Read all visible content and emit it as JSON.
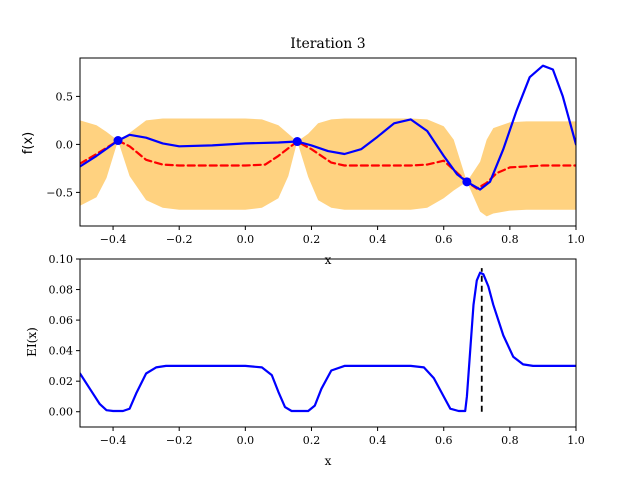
{
  "chart_data": [
    {
      "type": "line",
      "title": "Iteration 3",
      "xlabel": "x",
      "ylabel": "f(x)",
      "xlim": [
        -0.5,
        1.0
      ],
      "ylim": [
        -0.85,
        0.9
      ],
      "xticks": [
        -0.4,
        -0.2,
        0.0,
        0.2,
        0.4,
        0.6,
        0.8,
        1.0
      ],
      "yticks": [
        -0.5,
        0.0,
        0.5
      ],
      "grid": false,
      "series": [
        {
          "kind": "band",
          "color": "#ffd280",
          "x": [
            -0.5,
            -0.45,
            -0.42,
            -0.385,
            -0.35,
            -0.3,
            -0.25,
            -0.2,
            -0.1,
            0.0,
            0.05,
            0.1,
            0.13,
            0.157,
            0.19,
            0.22,
            0.26,
            0.3,
            0.4,
            0.5,
            0.55,
            0.6,
            0.63,
            0.67,
            0.71,
            0.73,
            0.75,
            0.8,
            0.85,
            0.9,
            1.0
          ],
          "upper": [
            0.25,
            0.2,
            0.13,
            0.04,
            0.12,
            0.25,
            0.27,
            0.27,
            0.27,
            0.27,
            0.26,
            0.2,
            0.11,
            0.03,
            0.11,
            0.22,
            0.26,
            0.27,
            0.27,
            0.27,
            0.26,
            0.19,
            0.05,
            -0.39,
            -0.18,
            0.05,
            0.17,
            0.23,
            0.24,
            0.24,
            0.24
          ],
          "lower": [
            -0.64,
            -0.55,
            -0.35,
            0.04,
            -0.33,
            -0.58,
            -0.66,
            -0.68,
            -0.68,
            -0.68,
            -0.66,
            -0.56,
            -0.33,
            0.03,
            -0.34,
            -0.58,
            -0.66,
            -0.68,
            -0.68,
            -0.68,
            -0.66,
            -0.56,
            -0.48,
            -0.39,
            -0.7,
            -0.75,
            -0.72,
            -0.69,
            -0.68,
            -0.68,
            -0.68
          ]
        },
        {
          "kind": "line",
          "color": "#ff0000",
          "dash": true,
          "x": [
            -0.5,
            -0.45,
            -0.385,
            -0.35,
            -0.3,
            -0.25,
            -0.2,
            -0.1,
            0.0,
            0.06,
            0.1,
            0.157,
            0.2,
            0.26,
            0.3,
            0.4,
            0.5,
            0.55,
            0.6,
            0.67,
            0.7,
            0.73,
            0.76,
            0.8,
            0.9,
            1.0
          ],
          "y": [
            -0.2,
            -0.1,
            0.04,
            -0.02,
            -0.16,
            -0.21,
            -0.22,
            -0.22,
            -0.22,
            -0.21,
            -0.12,
            0.03,
            -0.05,
            -0.19,
            -0.22,
            -0.22,
            -0.22,
            -0.21,
            -0.17,
            -0.39,
            -0.46,
            -0.4,
            -0.3,
            -0.24,
            -0.22,
            -0.22
          ]
        },
        {
          "kind": "line",
          "color": "#0000ff",
          "dash": false,
          "x": [
            -0.5,
            -0.45,
            -0.385,
            -0.35,
            -0.3,
            -0.25,
            -0.2,
            -0.1,
            0.0,
            0.1,
            0.157,
            0.2,
            0.25,
            0.3,
            0.35,
            0.4,
            0.45,
            0.5,
            0.55,
            0.6,
            0.64,
            0.67,
            0.71,
            0.74,
            0.78,
            0.82,
            0.86,
            0.9,
            0.93,
            0.96,
            1.0
          ],
          "y": [
            -0.23,
            -0.12,
            0.04,
            0.1,
            0.07,
            0.01,
            -0.02,
            -0.01,
            0.01,
            0.02,
            0.03,
            -0.01,
            -0.07,
            -0.1,
            -0.05,
            0.08,
            0.22,
            0.26,
            0.14,
            -0.12,
            -0.31,
            -0.39,
            -0.47,
            -0.39,
            -0.05,
            0.35,
            0.7,
            0.82,
            0.78,
            0.5,
            0.0
          ]
        },
        {
          "kind": "points",
          "color": "#0000ff",
          "x": [
            -0.385,
            0.157,
            0.67
          ],
          "y": [
            0.04,
            0.03,
            -0.39
          ]
        }
      ]
    },
    {
      "type": "line",
      "title": "",
      "xlabel": "x",
      "ylabel": "EI(x)",
      "xlim": [
        -0.5,
        1.0
      ],
      "ylim": [
        -0.01,
        0.1
      ],
      "xticks": [
        -0.4,
        -0.2,
        0.0,
        0.2,
        0.4,
        0.6,
        0.8,
        1.0
      ],
      "yticks": [
        0.0,
        0.02,
        0.04,
        0.06,
        0.08,
        0.1
      ],
      "grid": false,
      "series": [
        {
          "kind": "line",
          "color": "#0000ff",
          "dash": false,
          "x": [
            -0.5,
            -0.47,
            -0.44,
            -0.42,
            -0.4,
            -0.37,
            -0.35,
            -0.33,
            -0.3,
            -0.27,
            -0.24,
            -0.2,
            -0.1,
            0.0,
            0.05,
            0.08,
            0.1,
            0.12,
            0.14,
            0.157,
            0.19,
            0.21,
            0.23,
            0.26,
            0.3,
            0.4,
            0.5,
            0.54,
            0.57,
            0.6,
            0.62,
            0.645,
            0.665,
            0.67,
            0.68,
            0.69,
            0.7,
            0.71,
            0.72,
            0.735,
            0.75,
            0.78,
            0.81,
            0.84,
            0.87,
            0.9,
            1.0
          ],
          "y": [
            0.025,
            0.015,
            0.005,
            0.001,
            0.0005,
            0.0005,
            0.002,
            0.012,
            0.025,
            0.029,
            0.03,
            0.03,
            0.03,
            0.03,
            0.029,
            0.024,
            0.013,
            0.003,
            0.0005,
            0.0005,
            0.0005,
            0.004,
            0.015,
            0.027,
            0.03,
            0.03,
            0.03,
            0.029,
            0.022,
            0.01,
            0.002,
            0.0005,
            0.0005,
            0.01,
            0.04,
            0.07,
            0.086,
            0.091,
            0.09,
            0.082,
            0.07,
            0.05,
            0.036,
            0.031,
            0.03,
            0.03,
            0.03
          ]
        },
        {
          "kind": "vline",
          "color": "#000000",
          "dash": true,
          "x": 0.715,
          "y": [
            0.0,
            0.094
          ]
        }
      ]
    }
  ]
}
